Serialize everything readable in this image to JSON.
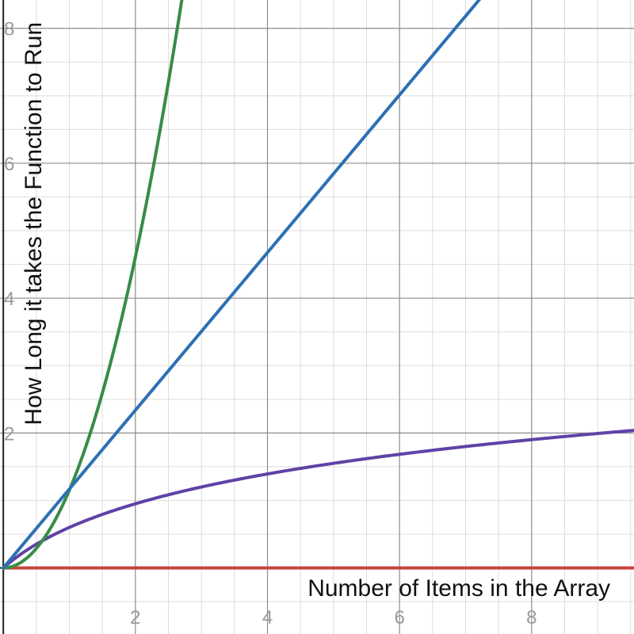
{
  "chart_data": {
    "type": "line",
    "xlabel": "Number of Items in the Array",
    "ylabel": "How Long it takes the Function to Run",
    "xlim": [
      -0.05,
      9.55
    ],
    "ylim": [
      -0.98,
      8.42
    ],
    "grid": true,
    "minor_grid_step": 0.5,
    "major_grid_step": 2,
    "x_ticks": [
      {
        "value": 2,
        "label": "2"
      },
      {
        "value": 4,
        "label": "4"
      },
      {
        "value": 6,
        "label": "6"
      },
      {
        "value": 8,
        "label": "8"
      }
    ],
    "y_ticks": [
      {
        "value": 2,
        "label": "2"
      },
      {
        "value": 4,
        "label": "4"
      },
      {
        "value": 6,
        "label": "6"
      },
      {
        "value": 8,
        "label": "8"
      }
    ],
    "series": [
      {
        "color": "#c74440",
        "function": "constant",
        "x": [
          0,
          2,
          4,
          6,
          8,
          9.55
        ],
        "y": [
          0,
          0,
          0,
          0,
          0,
          0
        ]
      },
      {
        "color": "#6042a6",
        "function": "log",
        "x": [
          0,
          1,
          2,
          4,
          6,
          8,
          9.55
        ],
        "y": [
          0,
          0.6,
          1.0,
          1.4,
          1.7,
          1.9,
          2.0
        ]
      },
      {
        "color": "#388c46",
        "function": "quadratic",
        "x": [
          0,
          0.5,
          1,
          1.5,
          2,
          2.5,
          2.75
        ],
        "y": [
          0,
          0.3,
          1.3,
          2.9,
          5.0,
          7.2,
          8.4
        ]
      },
      {
        "color": "#2d70b3",
        "function": "linear",
        "x": [
          0,
          2,
          4,
          6,
          7.5
        ],
        "y": [
          0,
          3.1,
          5.0,
          7.0,
          8.4
        ]
      }
    ]
  }
}
